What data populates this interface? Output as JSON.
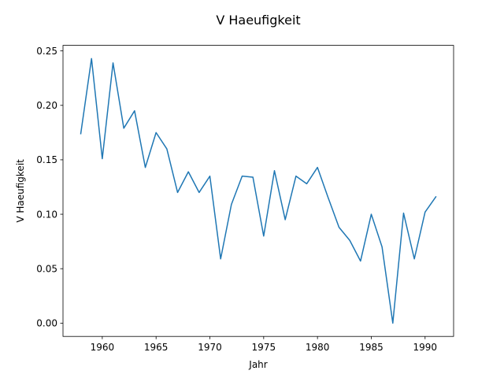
{
  "chart_data": {
    "type": "line",
    "title": "V Haeufigkeit",
    "xlabel": "Jahr",
    "ylabel": "V Haeufigkeit",
    "xlim": [
      1956.35,
      1992.65
    ],
    "ylim": [
      -0.0122,
      0.2551
    ],
    "x_ticks": [
      1960,
      1965,
      1970,
      1975,
      1980,
      1985,
      1990
    ],
    "x_tick_labels": [
      "1960",
      "1965",
      "1970",
      "1975",
      "1980",
      "1985",
      "1990"
    ],
    "y_ticks": [
      0.0,
      0.05,
      0.1,
      0.15,
      0.2,
      0.25
    ],
    "y_tick_labels": [
      "0.00",
      "0.05",
      "0.10",
      "0.15",
      "0.20",
      "0.25"
    ],
    "grid": false,
    "legend": "none",
    "series": [
      {
        "color": "#1f77b4",
        "x": [
          1958,
          1959,
          1960,
          1961,
          1962,
          1963,
          1964,
          1965,
          1966,
          1967,
          1968,
          1969,
          1970,
          1971,
          1972,
          1973,
          1974,
          1975,
          1976,
          1977,
          1978,
          1979,
          1980,
          1981,
          1982,
          1983,
          1984,
          1985,
          1986,
          1987,
          1988,
          1989,
          1990,
          1991
        ],
        "y": [
          0.174,
          0.243,
          0.151,
          0.239,
          0.179,
          0.195,
          0.143,
          0.175,
          0.16,
          0.12,
          0.139,
          0.12,
          0.135,
          0.059,
          0.109,
          0.135,
          0.134,
          0.08,
          0.14,
          0.095,
          0.135,
          0.128,
          0.143,
          0.115,
          0.088,
          0.076,
          0.057,
          0.1,
          0.07,
          0.0,
          0.101,
          0.059,
          0.102,
          0.116
        ]
      }
    ]
  }
}
